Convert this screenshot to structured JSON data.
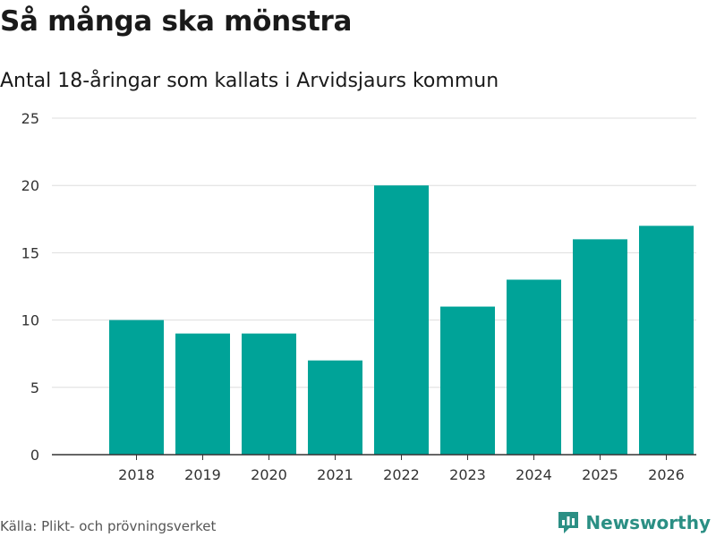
{
  "header": {
    "title": "Så många ska mönstra",
    "subtitle": "Antal 18-åringar som kallats i Arvidsjaurs kommun"
  },
  "footer": {
    "source": "Källa: Plikt- och prövningsverket",
    "brand_name": "Newsworthy",
    "brand_icon": "newsworthy-logo-icon"
  },
  "colors": {
    "bar": "#00a398",
    "grid": "#dddddd",
    "axis": "#333333",
    "brand": "#2b8f84"
  },
  "chart_data": {
    "type": "bar",
    "title": "Så många ska mönstra",
    "subtitle": "Antal 18-åringar som kallats i Arvidsjaurs kommun",
    "xlabel": "",
    "ylabel": "",
    "categories": [
      "2018",
      "2019",
      "2020",
      "2021",
      "2022",
      "2023",
      "2024",
      "2025",
      "2026"
    ],
    "values": [
      10,
      9,
      9,
      7,
      20,
      11,
      13,
      16,
      17
    ],
    "ylim": [
      0,
      25
    ],
    "yticks": [
      0,
      5,
      10,
      15,
      20,
      25
    ],
    "grid": true,
    "legend": "none"
  }
}
